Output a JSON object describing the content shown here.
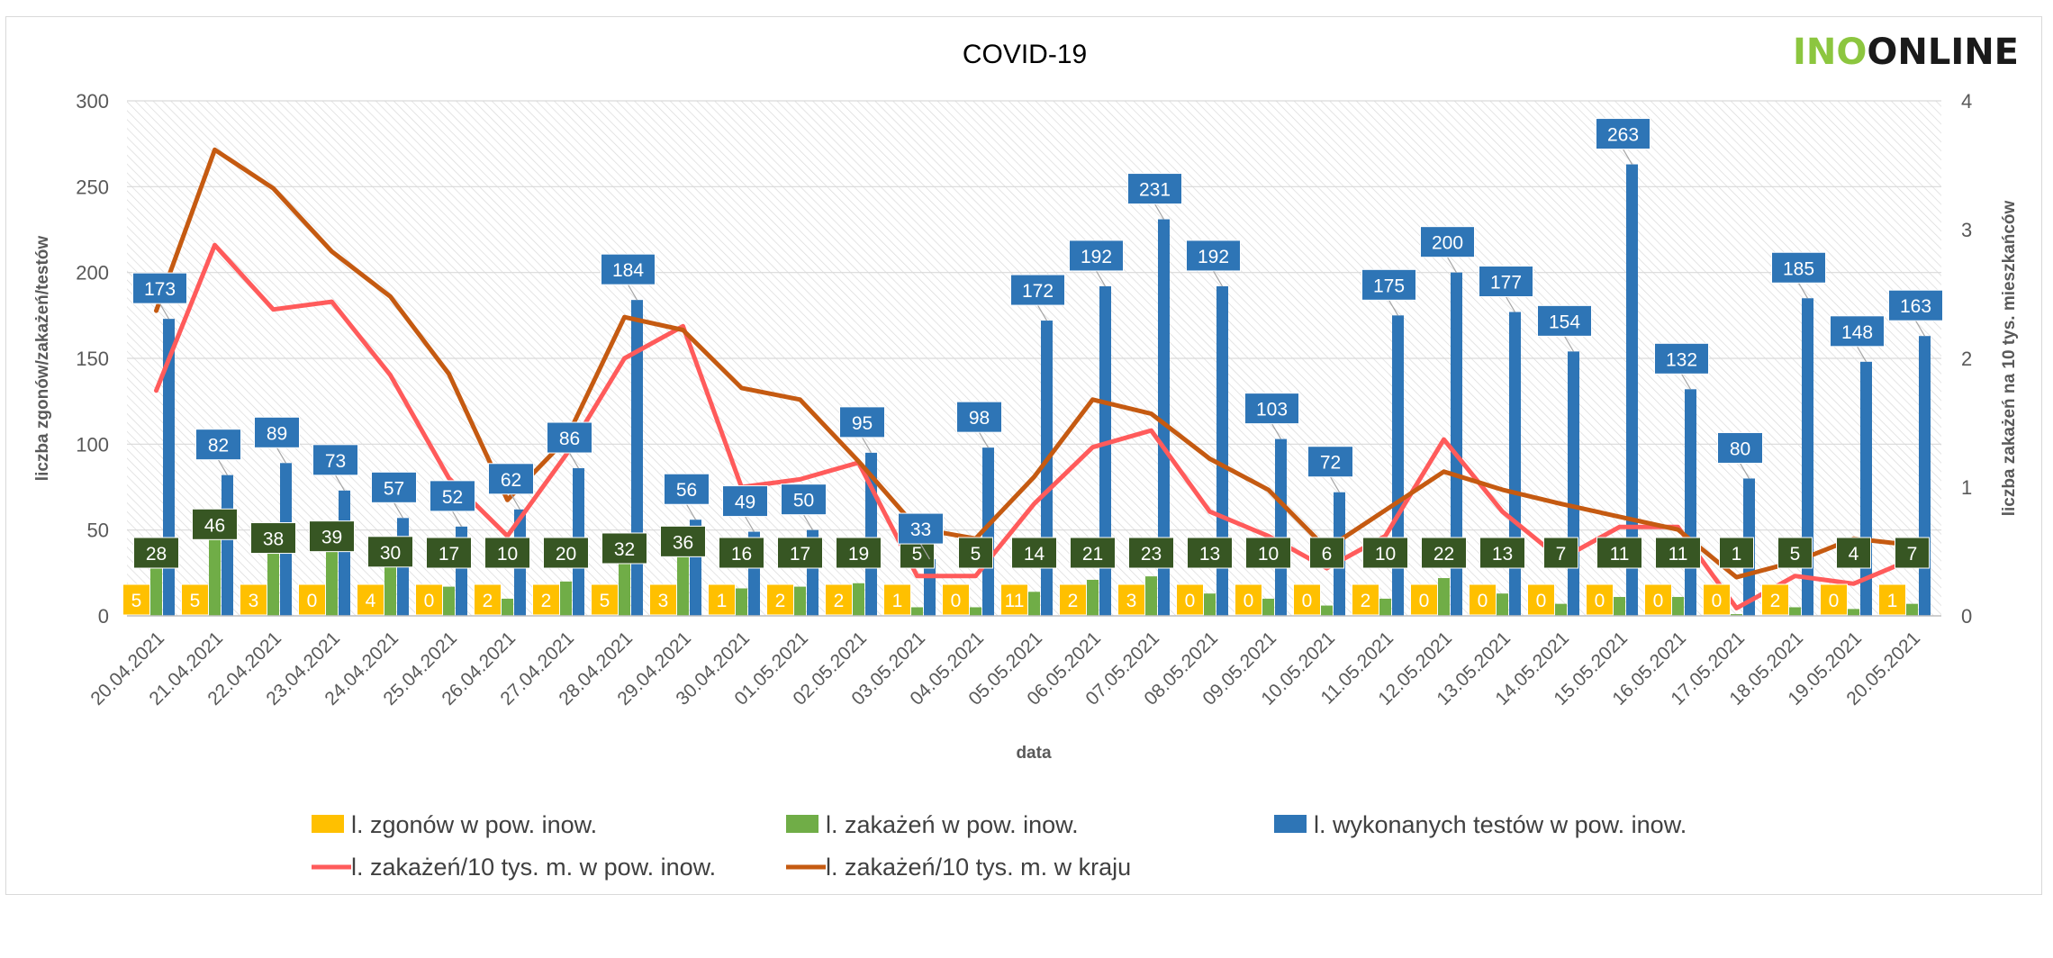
{
  "chart_data": {
    "type": "bar",
    "title": "COVID-19",
    "logo": {
      "part1": "INO",
      "part2": "ONLINE",
      "color1": "#8cc63f",
      "color2": "#1a1a1a"
    },
    "xlabel": "data",
    "ylabel": "liczba zgonów/zakażeń/testów",
    "y2label": "liczba zakażeń na 10 tys. mieszkańców",
    "ylim": [
      0,
      300
    ],
    "y2lim": [
      0,
      4
    ],
    "yticks": [
      0,
      50,
      100,
      150,
      200,
      250,
      300
    ],
    "y2ticks": [
      0,
      1,
      2,
      3,
      4
    ],
    "categories": [
      "20.04.2021",
      "21.04.2021",
      "22.04.2021",
      "23.04.2021",
      "24.04.2021",
      "25.04.2021",
      "26.04.2021",
      "27.04.2021",
      "28.04.2021",
      "29.04.2021",
      "30.04.2021",
      "01.05.2021",
      "02.05.2021",
      "03.05.2021",
      "04.05.2021",
      "05.05.2021",
      "06.05.2021",
      "07.05.2021",
      "08.05.2021",
      "09.05.2021",
      "10.05.2021",
      "11.05.2021",
      "12.05.2021",
      "13.05.2021",
      "14.05.2021",
      "15.05.2021",
      "16.05.2021",
      "17.05.2021",
      "18.05.2021",
      "19.05.2021",
      "20.05.2021"
    ],
    "series": [
      {
        "name": "l. zgonów w pow. inow.",
        "type": "bar",
        "color": "#ffc000",
        "label_bg": "#ffc000",
        "label_fg": "#ffffff",
        "values": [
          5,
          5,
          3,
          0,
          4,
          0,
          2,
          2,
          5,
          3,
          1,
          2,
          2,
          1,
          0,
          11,
          2,
          3,
          0,
          0,
          0,
          2,
          0,
          0,
          0,
          0,
          0,
          0,
          2,
          0,
          1
        ]
      },
      {
        "name": "l. zakażeń w pow. inow.",
        "type": "bar",
        "color": "#70ad47",
        "label_bg": "#375623",
        "label_fg": "#ffffff",
        "values": [
          28,
          46,
          38,
          39,
          30,
          17,
          10,
          20,
          32,
          36,
          16,
          17,
          19,
          5,
          5,
          14,
          21,
          23,
          13,
          10,
          6,
          10,
          22,
          13,
          7,
          11,
          11,
          1,
          5,
          4,
          7
        ]
      },
      {
        "name": "l. wykonanych testów w pow. inow.",
        "type": "bar",
        "color": "#2e75b6",
        "label_bg": "#2e75b6",
        "label_fg": "#ffffff",
        "values": [
          173,
          82,
          89,
          73,
          57,
          52,
          62,
          86,
          184,
          56,
          49,
          50,
          95,
          33,
          98,
          172,
          192,
          231,
          192,
          103,
          72,
          175,
          200,
          177,
          154,
          263,
          132,
          80,
          185,
          148,
          163
        ]
      },
      {
        "name": "l. zakażeń/10 tys. m. w pow. inow.",
        "type": "line",
        "axis": "y2",
        "color": "#ff5b5b",
        "values": [
          1.75,
          2.88,
          2.38,
          2.44,
          1.87,
          1.07,
          0.62,
          1.25,
          2.0,
          2.25,
          1.0,
          1.06,
          1.19,
          0.31,
          0.31,
          0.87,
          1.31,
          1.44,
          0.81,
          0.62,
          0.37,
          0.62,
          1.37,
          0.81,
          0.44,
          0.69,
          0.69,
          0.06,
          0.31,
          0.25,
          0.44
        ]
      },
      {
        "name": "l. zakażeń/10 tys. m. w kraju",
        "type": "line",
        "axis": "y2",
        "color": "#c55a11",
        "values": [
          2.37,
          3.62,
          3.32,
          2.83,
          2.48,
          1.88,
          0.9,
          1.37,
          2.32,
          2.22,
          1.77,
          1.68,
          1.2,
          0.68,
          0.6,
          1.08,
          1.68,
          1.57,
          1.22,
          0.98,
          0.52,
          0.82,
          1.12,
          0.98,
          0.87,
          0.77,
          0.67,
          0.3,
          0.42,
          0.6,
          0.55
        ]
      }
    ]
  }
}
